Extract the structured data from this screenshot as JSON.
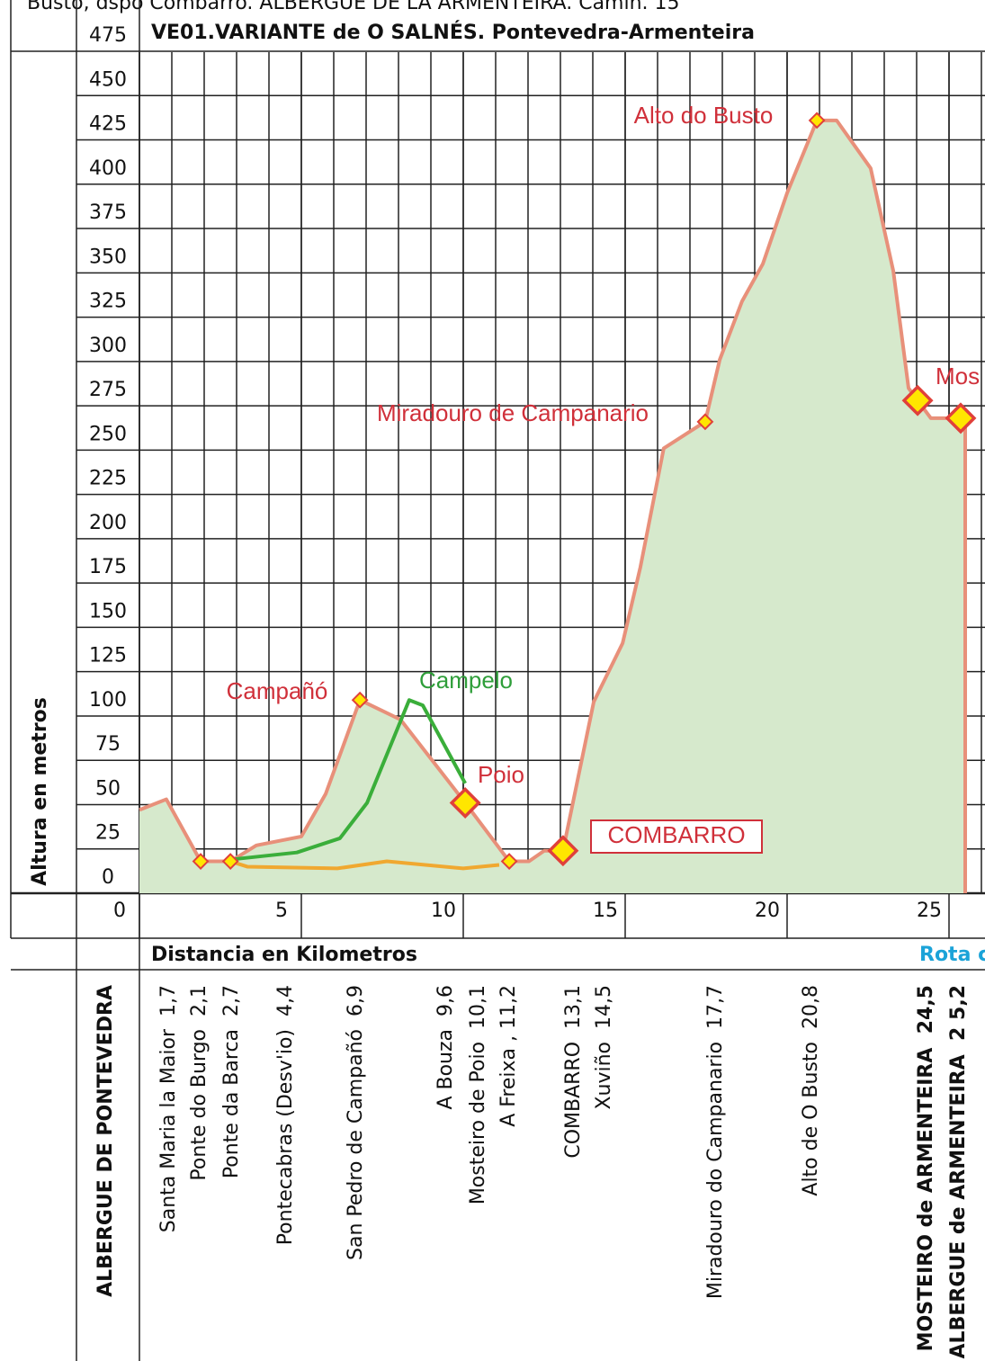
{
  "caption": "Busto, dspo Combarro. ALBERGUE DE LA ARMENTEIRA. Camin. 15",
  "chart_data": {
    "type": "area",
    "title": "VE01.VARIANTE de O SALNÉS. Pontevedra-Armenteira",
    "y_label": "Altura en metros",
    "x_label": "Distancia en Kilometros",
    "x_note": "Rota c",
    "xlim": [
      0,
      26.1
    ],
    "ylim": [
      0,
      475
    ],
    "xticks": [
      0,
      5,
      10,
      15,
      20,
      25
    ],
    "yticks": [
      0,
      25,
      50,
      75,
      100,
      125,
      150,
      175,
      200,
      225,
      250,
      275,
      300,
      325,
      350,
      375,
      400,
      425,
      450,
      475
    ],
    "x_grid_step": 1,
    "grid": true,
    "profile": {
      "color": "#e8907a",
      "fill": "#d6e9cc",
      "x": [
        0,
        0.83,
        1.89,
        2.81,
        3.61,
        5,
        5.75,
        6.81,
        8.06,
        10.06,
        11.42,
        12.03,
        12.5,
        13.08,
        14.03,
        14.92,
        15.47,
        16.19,
        17.47,
        17.92,
        18.61,
        19.25,
        20,
        20.92,
        21.53,
        22.58,
        23.28,
        23.75,
        24.03,
        24.44,
        25.36,
        25.5,
        25.5
      ],
      "values": [
        47,
        53,
        18,
        18,
        27,
        32,
        56,
        109,
        98,
        51,
        18,
        18,
        24,
        24,
        108,
        141,
        184,
        251,
        266,
        301,
        334,
        355,
        395,
        436,
        436,
        409,
        351,
        285,
        278,
        268,
        268,
        265,
        0
      ]
    },
    "routes": [
      {
        "color": "#3aae3a",
        "x": [
          2.81,
          4.86,
          6.19,
          7.03,
          8.33,
          8.75,
          10.06
        ],
        "values": [
          19,
          23,
          31,
          51,
          109,
          106,
          62
        ]
      },
      {
        "color": "#f0a830",
        "x": [
          2.81,
          3.33,
          6.11,
          7.64,
          10,
          11.11
        ],
        "values": [
          18,
          15,
          14,
          18,
          14,
          16
        ]
      }
    ],
    "markers": {
      "x": [
        1.89,
        2.81,
        6.81,
        11.42,
        17.47,
        20.92
      ],
      "values": [
        18,
        18,
        109,
        18,
        266,
        436
      ]
    },
    "large_markers": {
      "x": [
        10.06,
        13.08,
        24.03,
        25.36
      ],
      "values": [
        51,
        24,
        278,
        268
      ]
    },
    "marker_fill": "#ffe600",
    "marker_stroke": "#e0403a",
    "annotations": [
      {
        "text": "Alto do Busto",
        "color": "#d0303a"
      },
      {
        "text": "Miradouro de Campanario",
        "color": "#d0303a"
      },
      {
        "text": "Campañó",
        "color": "#d0303a"
      },
      {
        "text": "Campelo",
        "color": "#2f9e3a"
      },
      {
        "text": "Poio",
        "color": "#d0303a"
      },
      {
        "text": "COMBARRO",
        "color": "#d0303a"
      },
      {
        "text": "Mos",
        "color": "#d0303a"
      }
    ],
    "stations": [
      "ALBERGUE DE PONTEVEDRA",
      "Santa Maria la Maior  1,7",
      "Ponte do Burgo  2,1",
      "Ponte da Barca  2,7",
      "Pontecabras (Desv'io)  4,4",
      "San Pedro de Campañó  6,9",
      "A Bouza  9,6",
      "Mosteiro de Poio  10,1",
      "A Freixa , 11,2",
      "COMBARRO  13,1",
      "Xuviño  14,5",
      "Miradouro do Campanario  17,7",
      "Alto de O Busto  20,8",
      "MOSTEIRO de ARMENTEIRA  24,5",
      "ALBERGUE de ARMENTEIRA  2 5,2"
    ]
  }
}
